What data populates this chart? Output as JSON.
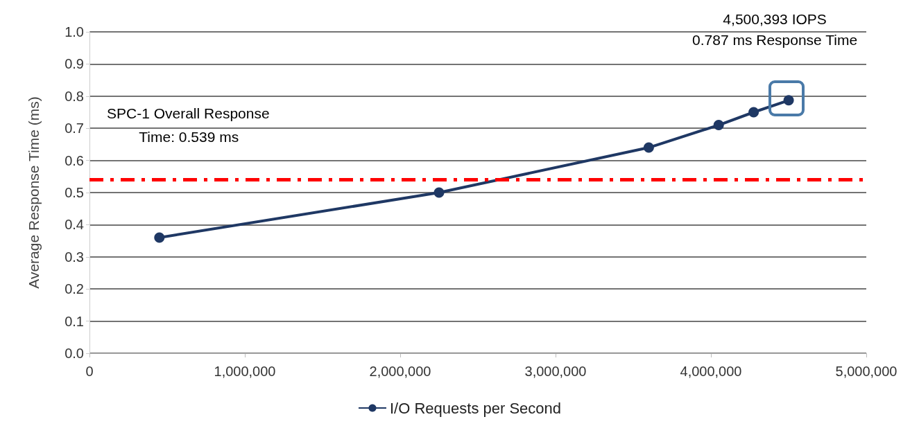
{
  "chart_data": {
    "type": "line",
    "ylabel": "Average Response Time (ms)",
    "xlim": [
      0,
      5000000
    ],
    "xticks": [
      0,
      {
        "value": 1000000,
        "label": "1,000,000"
      },
      {
        "value": 2000000,
        "label": "2,000,000"
      },
      {
        "value": 3000000,
        "label": "3,000,000"
      },
      {
        "value": 4000000,
        "label": "4,000,000"
      },
      {
        "value": 5000000,
        "label": "5,000,000"
      }
    ],
    "ylim": [
      0,
      1.0
    ],
    "yticks": [
      {
        "value": 0,
        "label": "0.0"
      },
      0.1,
      0.2,
      0.3,
      0.4,
      0.5,
      0.6,
      0.7,
      0.8,
      0.9,
      {
        "value": 1,
        "label": "1.0"
      }
    ],
    "x": [
      450000,
      2250000,
      3600000,
      4050000,
      4275000,
      4500393
    ],
    "series": [
      {
        "name": "I/O Requests per Second",
        "color": "#1f3864",
        "values": [
          0.36,
          0.5,
          0.64,
          0.71,
          0.75,
          0.787
        ]
      }
    ],
    "ref_lines": [
      {
        "axis": "y",
        "value": 0.539,
        "color": "#ff0000",
        "line_style": "dashdot"
      }
    ],
    "annotations": [
      "4,500,393 IOPS\n0.787 ms Response Time",
      "SPC-1 Overall Response\n        Time: 0.539 ms"
    ],
    "grid": "y",
    "legend": "bottom",
    "marker": "circle",
    "line_style": "solid"
  }
}
